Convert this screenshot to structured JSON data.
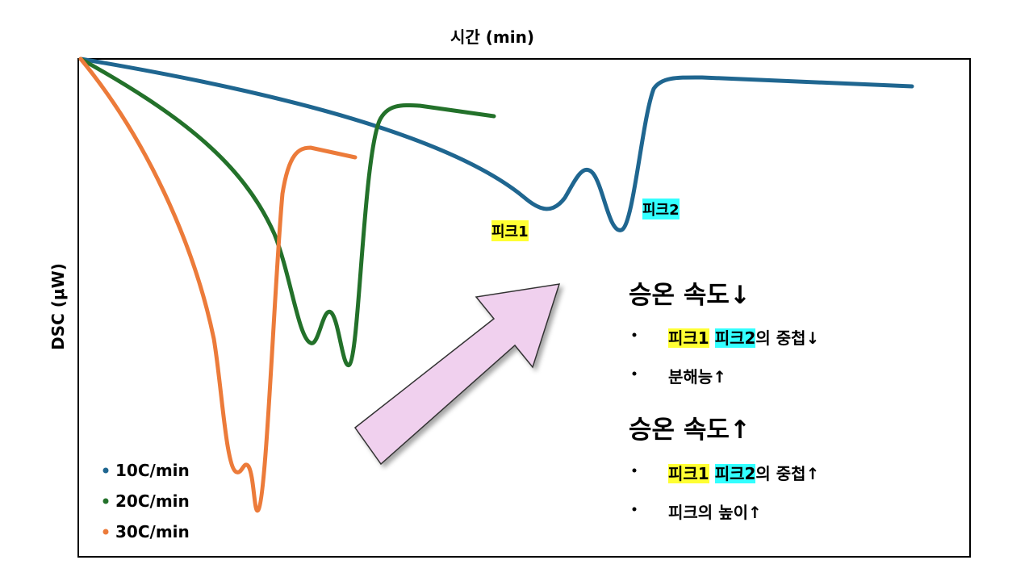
{
  "axes": {
    "x_label": "시간 (min)",
    "y_label": "DSC (μW)"
  },
  "legend": [
    {
      "label": "10C/min",
      "color": "#1f6690"
    },
    {
      "label": "20C/min",
      "color": "#23712a"
    },
    {
      "label": "30C/min",
      "color": "#ec7b3a"
    }
  ],
  "peaks": [
    {
      "label": "피크1",
      "highlight": "#ffff33"
    },
    {
      "label": "피크2",
      "highlight": "#33ffff"
    }
  ],
  "notes": [
    {
      "heading": "승온 속도↓",
      "bullets": [
        {
          "segments": [
            {
              "text": "피크1",
              "highlight": "#ffff33"
            },
            {
              "text": " "
            },
            {
              "text": "피크2",
              "highlight": "#33ffff"
            },
            {
              "text": "의 중첩↓"
            }
          ]
        },
        {
          "segments": [
            {
              "text": "분해능↑"
            }
          ]
        }
      ]
    },
    {
      "heading": "승온 속도↑",
      "bullets": [
        {
          "segments": [
            {
              "text": "피크1",
              "highlight": "#ffff33"
            },
            {
              "text": " "
            },
            {
              "text": "피크2",
              "highlight": "#33ffff"
            },
            {
              "text": "의 중첩↑"
            }
          ]
        },
        {
          "segments": [
            {
              "text": "피크의 높이↑"
            }
          ]
        }
      ]
    }
  ]
}
